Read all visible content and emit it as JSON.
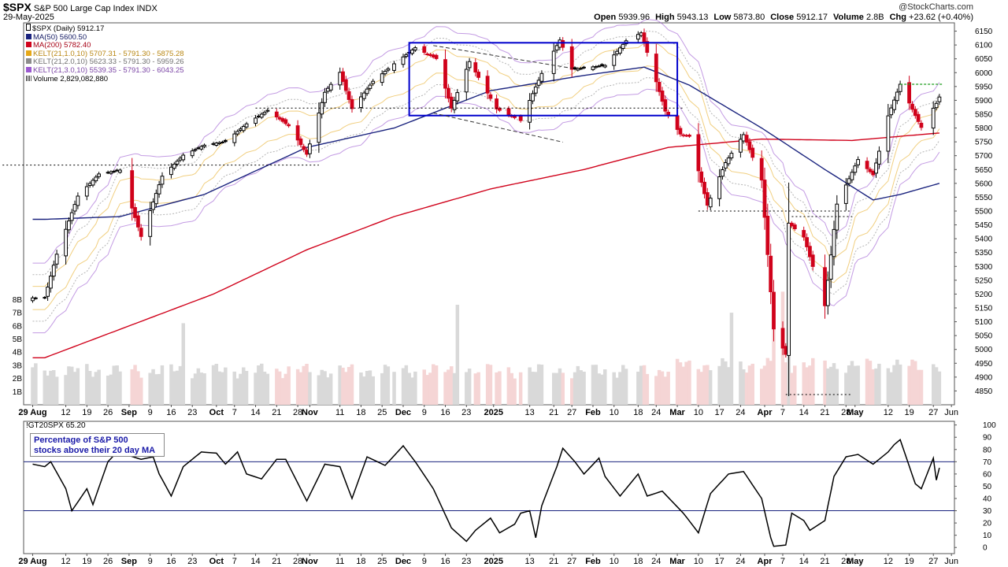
{
  "header": {
    "symbol": "$SPX",
    "name": "S&P 500 Large Cap Index",
    "exchange": "INDX",
    "date": "29-May-2025",
    "watermark": "@StockCharts.com",
    "quote": [
      {
        "label": "Open",
        "value": "5939.96"
      },
      {
        "label": "High",
        "value": "5943.13"
      },
      {
        "label": "Low",
        "value": "5873.80"
      },
      {
        "label": "Close",
        "value": "5912.17"
      },
      {
        "label": "Volume",
        "value": "2.8B"
      },
      {
        "label": "Chg",
        "value": "+23.62 (+0.40%)"
      }
    ]
  },
  "legend": [
    {
      "text": "$SPX (Daily) 5912.17",
      "color": "#000000",
      "glyph": "candle-icon"
    },
    {
      "text": "MA(50) 5600.50",
      "color": "#1a237e",
      "glyph": "swatch"
    },
    {
      "text": "MA(200) 5782.40",
      "color": "#d0021b",
      "glyph": "swatch"
    },
    {
      "text": "KELT(21,1.0,10) 5707.31 - 5791.30 - 5875.28",
      "color": "#e6a817",
      "glyph": "swatch"
    },
    {
      "text": "KELT(21,2.0,10) 5623.33 - 5791.30 - 5959.26",
      "color": "#8c8c8c",
      "glyph": "swatch"
    },
    {
      "text": "KELT(21,3.0,10) 5539.35 - 5791.30 - 6043.25",
      "color": "#9b59d0",
      "glyph": "swatch"
    },
    {
      "text": "Volume 2,829,082,880",
      "color": "#666666",
      "glyph": "volume-icon"
    }
  ],
  "indicator": {
    "title": "!GT20SPX 65.20",
    "note_lines": [
      "Percentage of S&P 500",
      "stocks above their 20 day MA"
    ]
  },
  "colors": {
    "up": "#000000",
    "down": "#d0021b",
    "ma50": "#1a237e",
    "ma200": "#d0021b",
    "kelt1": "#e6a817",
    "kelt2": "#8c8c8c",
    "kelt3": "#9b59d0",
    "box": "#0000cc",
    "volume_up": "#d9d9d9",
    "volume_down": "#f5d5d5"
  },
  "chart_data": [
    {
      "type": "candlestick",
      "series_name": "$SPX (Daily)",
      "ylim": [
        4800,
        6180
      ],
      "y_ticks": [
        4850,
        4900,
        4950,
        5000,
        5050,
        5100,
        5150,
        5200,
        5250,
        5300,
        5350,
        5400,
        5450,
        5500,
        5550,
        5600,
        5650,
        5700,
        5750,
        5800,
        5850,
        5900,
        5950,
        6000,
        6050,
        6100,
        6150
      ],
      "x_tick_labels": [
        "29 Aug",
        "12",
        "19",
        "26",
        "Sep",
        "9",
        "16",
        "23",
        "Oct",
        "7",
        "14",
        "21",
        "28",
        "Nov",
        "11",
        "18",
        "25",
        "Dec",
        "9",
        "16",
        "23",
        "2025",
        "13",
        "21",
        "27",
        "Feb",
        "10",
        "18",
        "24",
        "Mar",
        "10",
        "17",
        "24",
        "Apr",
        "7",
        "14",
        "21",
        "28",
        "May",
        "12",
        "19",
        "27",
        "Jun"
      ],
      "bold_x_labels": [
        "29 Aug",
        "Sep",
        "Oct",
        "Nov",
        "Dec",
        "2025",
        "Feb",
        "Mar",
        "Apr",
        "May"
      ],
      "close_keypoints": [
        {
          "date": "2024-08-05",
          "value": 5186
        },
        {
          "date": "2024-08-09",
          "value": 5344
        },
        {
          "date": "2024-08-16",
          "value": 5554
        },
        {
          "date": "2024-08-23",
          "value": 5634
        },
        {
          "date": "2024-08-30",
          "value": 5648
        },
        {
          "date": "2024-09-06",
          "value": 5408
        },
        {
          "date": "2024-09-13",
          "value": 5626
        },
        {
          "date": "2024-09-20",
          "value": 5702
        },
        {
          "date": "2024-09-27",
          "value": 5738
        },
        {
          "date": "2024-10-04",
          "value": 5751
        },
        {
          "date": "2024-10-11",
          "value": 5815
        },
        {
          "date": "2024-10-18",
          "value": 5864
        },
        {
          "date": "2024-10-25",
          "value": 5808
        },
        {
          "date": "2024-10-31",
          "value": 5705
        },
        {
          "date": "2024-11-06",
          "value": 5929
        },
        {
          "date": "2024-11-11",
          "value": 6001
        },
        {
          "date": "2024-11-15",
          "value": 5870
        },
        {
          "date": "2024-11-22",
          "value": 5969
        },
        {
          "date": "2024-11-29",
          "value": 6032
        },
        {
          "date": "2024-12-06",
          "value": 6090
        },
        {
          "date": "2024-12-13",
          "value": 6051
        },
        {
          "date": "2024-12-18",
          "value": 5872
        },
        {
          "date": "2024-12-24",
          "value": 6040
        },
        {
          "date": "2025-01-02",
          "value": 5869
        },
        {
          "date": "2025-01-10",
          "value": 5827
        },
        {
          "date": "2025-01-17",
          "value": 5997
        },
        {
          "date": "2025-01-23",
          "value": 6118
        },
        {
          "date": "2025-01-27",
          "value": 6012
        },
        {
          "date": "2025-02-07",
          "value": 6026
        },
        {
          "date": "2025-02-14",
          "value": 6115
        },
        {
          "date": "2025-02-19",
          "value": 6144
        },
        {
          "date": "2025-02-27",
          "value": 5861
        },
        {
          "date": "2025-03-04",
          "value": 5778
        },
        {
          "date": "2025-03-07",
          "value": 5770
        },
        {
          "date": "2025-03-13",
          "value": 5521
        },
        {
          "date": "2025-03-19",
          "value": 5675
        },
        {
          "date": "2025-03-25",
          "value": 5776
        },
        {
          "date": "2025-03-31",
          "value": 5612
        },
        {
          "date": "2025-04-04",
          "value": 5074
        },
        {
          "date": "2025-04-08",
          "value": 4982
        },
        {
          "date": "2025-04-09",
          "value": 5456
        },
        {
          "date": "2025-04-14",
          "value": 5406
        },
        {
          "date": "2025-04-21",
          "value": 5158
        },
        {
          "date": "2025-04-25",
          "value": 5525
        },
        {
          "date": "2025-05-02",
          "value": 5686
        },
        {
          "date": "2025-05-07",
          "value": 5631
        },
        {
          "date": "2025-05-12",
          "value": 5844
        },
        {
          "date": "2025-05-16",
          "value": 5958
        },
        {
          "date": "2025-05-21",
          "value": 5845
        },
        {
          "date": "2025-05-23",
          "value": 5802
        },
        {
          "date": "2025-05-28",
          "value": 5889
        },
        {
          "date": "2025-05-29",
          "value": 5912
        }
      ],
      "ma50_keypoints": [
        {
          "date": "2024-08-05",
          "value": 5470
        },
        {
          "date": "2024-08-30",
          "value": 5480
        },
        {
          "date": "2024-09-27",
          "value": 5560
        },
        {
          "date": "2024-10-31",
          "value": 5730
        },
        {
          "date": "2024-11-29",
          "value": 5800
        },
        {
          "date": "2024-12-31",
          "value": 5935
        },
        {
          "date": "2025-01-31",
          "value": 5990
        },
        {
          "date": "2025-02-20",
          "value": 6020
        },
        {
          "date": "2025-03-07",
          "value": 5955
        },
        {
          "date": "2025-03-31",
          "value": 5800
        },
        {
          "date": "2025-04-21",
          "value": 5650
        },
        {
          "date": "2025-05-07",
          "value": 5540
        },
        {
          "date": "2025-05-16",
          "value": 5560
        },
        {
          "date": "2025-05-29",
          "value": 5600
        }
      ],
      "ma200_keypoints": [
        {
          "date": "2024-08-05",
          "value": 4970
        },
        {
          "date": "2024-09-30",
          "value": 5200
        },
        {
          "date": "2024-10-31",
          "value": 5360
        },
        {
          "date": "2024-11-29",
          "value": 5480
        },
        {
          "date": "2024-12-31",
          "value": 5580
        },
        {
          "date": "2025-01-31",
          "value": 5650
        },
        {
          "date": "2025-02-28",
          "value": 5730
        },
        {
          "date": "2025-03-31",
          "value": 5760
        },
        {
          "date": "2025-04-30",
          "value": 5755
        },
        {
          "date": "2025-05-29",
          "value": 5782
        }
      ],
      "volume_axis": {
        "ylim": [
          0,
          8.8
        ],
        "ticks": [
          1,
          2,
          3,
          4,
          5,
          6,
          7,
          8
        ],
        "tick_labels": [
          "1B",
          "2B",
          "3B",
          "4B",
          "5B",
          "6B",
          "7B",
          "8B"
        ]
      },
      "volume_spikes": [
        {
          "date": "2024-09-20",
          "value": 6.2
        },
        {
          "date": "2024-12-20",
          "value": 7.6
        },
        {
          "date": "2025-03-21",
          "value": 7.0
        },
        {
          "date": "2025-04-04",
          "value": 7.6
        },
        {
          "date": "2025-04-07",
          "value": 8.6
        },
        {
          "date": "2025-04-09",
          "value": 7.0
        }
      ],
      "annotations": {
        "box": {
          "from": "2024-12-04",
          "to": "2025-03-03",
          "low": 5845,
          "high": 6108
        },
        "dotted_levels": [
          {
            "from": "2024-07-22",
            "to": "2024-11-04",
            "value": 5666
          },
          {
            "from": "2024-10-14",
            "to": "2025-03-05",
            "value": 5872
          },
          {
            "from": "2025-03-10",
            "to": "2025-04-30",
            "value": 5500
          },
          {
            "from": "2025-04-10",
            "to": "2025-04-30",
            "value": 5480
          },
          {
            "from": "2025-04-08",
            "to": "2025-04-30",
            "value": 4837
          }
        ],
        "green_level": {
          "from": "2025-05-16",
          "to": "2025-05-30",
          "value": 5958
        },
        "dashed_trendlines": [
          {
            "from": "2024-12-12",
            "from_value": 6098,
            "to": "2025-01-27",
            "to_value": 6016
          },
          {
            "from": "2024-12-12",
            "from_value": 5854,
            "to": "2025-01-24",
            "to_value": 5749
          }
        ]
      }
    },
    {
      "type": "line",
      "series_name": "!GT20SPX",
      "ylim": [
        -5,
        103
      ],
      "y_ticks": [
        0,
        10,
        20,
        30,
        40,
        50,
        60,
        70,
        80,
        90,
        100
      ],
      "reference_lines": [
        70,
        30
      ],
      "x_tick_labels": [
        "29 Aug",
        "12",
        "19",
        "26",
        "Sep",
        "9",
        "16",
        "23",
        "Oct",
        "7",
        "14",
        "21",
        "28",
        "Nov",
        "11",
        "18",
        "25",
        "Dec",
        "9",
        "16",
        "23",
        "2025",
        "13",
        "21",
        "27",
        "Feb",
        "10",
        "18",
        "24",
        "Mar",
        "10",
        "17",
        "24",
        "Apr",
        "7",
        "14",
        "21",
        "28",
        "May",
        "12",
        "19",
        "27",
        "Jun"
      ],
      "bold_x_labels": [
        "29 Aug",
        "Sep",
        "Oct",
        "Nov",
        "Dec",
        "2025",
        "Feb",
        "Mar",
        "Apr",
        "May"
      ],
      "keypoints": [
        {
          "date": "2024-08-01",
          "value": 68
        },
        {
          "date": "2024-08-05",
          "value": 66
        },
        {
          "date": "2024-08-07",
          "value": 70
        },
        {
          "date": "2024-08-12",
          "value": 48
        },
        {
          "date": "2024-08-14",
          "value": 30
        },
        {
          "date": "2024-08-19",
          "value": 48
        },
        {
          "date": "2024-08-21",
          "value": 35
        },
        {
          "date": "2024-08-26",
          "value": 70
        },
        {
          "date": "2024-08-29",
          "value": 78
        },
        {
          "date": "2024-09-06",
          "value": 72
        },
        {
          "date": "2024-09-10",
          "value": 74
        },
        {
          "date": "2024-09-12",
          "value": 60
        },
        {
          "date": "2024-09-16",
          "value": 42
        },
        {
          "date": "2024-09-20",
          "value": 66
        },
        {
          "date": "2024-09-26",
          "value": 78
        },
        {
          "date": "2024-10-01",
          "value": 77
        },
        {
          "date": "2024-10-04",
          "value": 68
        },
        {
          "date": "2024-10-08",
          "value": 78
        },
        {
          "date": "2024-10-11",
          "value": 60
        },
        {
          "date": "2024-10-16",
          "value": 56
        },
        {
          "date": "2024-10-21",
          "value": 72
        },
        {
          "date": "2024-10-24",
          "value": 72
        },
        {
          "date": "2024-10-31",
          "value": 38
        },
        {
          "date": "2024-11-06",
          "value": 68
        },
        {
          "date": "2024-11-11",
          "value": 66
        },
        {
          "date": "2024-11-15",
          "value": 40
        },
        {
          "date": "2024-11-20",
          "value": 74
        },
        {
          "date": "2024-11-26",
          "value": 67
        },
        {
          "date": "2024-12-02",
          "value": 83
        },
        {
          "date": "2024-12-06",
          "value": 70
        },
        {
          "date": "2024-12-12",
          "value": 48
        },
        {
          "date": "2024-12-18",
          "value": 16
        },
        {
          "date": "2024-12-23",
          "value": 5
        },
        {
          "date": "2024-12-26",
          "value": 14
        },
        {
          "date": "2024-12-31",
          "value": 24
        },
        {
          "date": "2025-01-03",
          "value": 12
        },
        {
          "date": "2025-01-08",
          "value": 19
        },
        {
          "date": "2025-01-10",
          "value": 28
        },
        {
          "date": "2025-01-13",
          "value": 30
        },
        {
          "date": "2025-01-15",
          "value": 8
        },
        {
          "date": "2025-01-17",
          "value": 34
        },
        {
          "date": "2025-01-22",
          "value": 66
        },
        {
          "date": "2025-01-24",
          "value": 81
        },
        {
          "date": "2025-01-28",
          "value": 70
        },
        {
          "date": "2025-01-31",
          "value": 60
        },
        {
          "date": "2025-02-05",
          "value": 73
        },
        {
          "date": "2025-02-07",
          "value": 58
        },
        {
          "date": "2025-02-12",
          "value": 42
        },
        {
          "date": "2025-02-18",
          "value": 60
        },
        {
          "date": "2025-02-21",
          "value": 42
        },
        {
          "date": "2025-02-26",
          "value": 46
        },
        {
          "date": "2025-03-05",
          "value": 28
        },
        {
          "date": "2025-03-10",
          "value": 12
        },
        {
          "date": "2025-03-14",
          "value": 44
        },
        {
          "date": "2025-03-20",
          "value": 60
        },
        {
          "date": "2025-03-25",
          "value": 62
        },
        {
          "date": "2025-03-31",
          "value": 40
        },
        {
          "date": "2025-04-03",
          "value": 8
        },
        {
          "date": "2025-04-04",
          "value": 1
        },
        {
          "date": "2025-04-08",
          "value": 2
        },
        {
          "date": "2025-04-10",
          "value": 28
        },
        {
          "date": "2025-04-14",
          "value": 22
        },
        {
          "date": "2025-04-16",
          "value": 14
        },
        {
          "date": "2025-04-21",
          "value": 22
        },
        {
          "date": "2025-04-24",
          "value": 58
        },
        {
          "date": "2025-04-28",
          "value": 74
        },
        {
          "date": "2025-05-02",
          "value": 76
        },
        {
          "date": "2025-05-07",
          "value": 68
        },
        {
          "date": "2025-05-12",
          "value": 78
        },
        {
          "date": "2025-05-14",
          "value": 84
        },
        {
          "date": "2025-05-16",
          "value": 88
        },
        {
          "date": "2025-05-21",
          "value": 52
        },
        {
          "date": "2025-05-23",
          "value": 48
        },
        {
          "date": "2025-05-27",
          "value": 73
        },
        {
          "date": "2025-05-28",
          "value": 55
        },
        {
          "date": "2025-05-29",
          "value": 65
        }
      ]
    }
  ]
}
